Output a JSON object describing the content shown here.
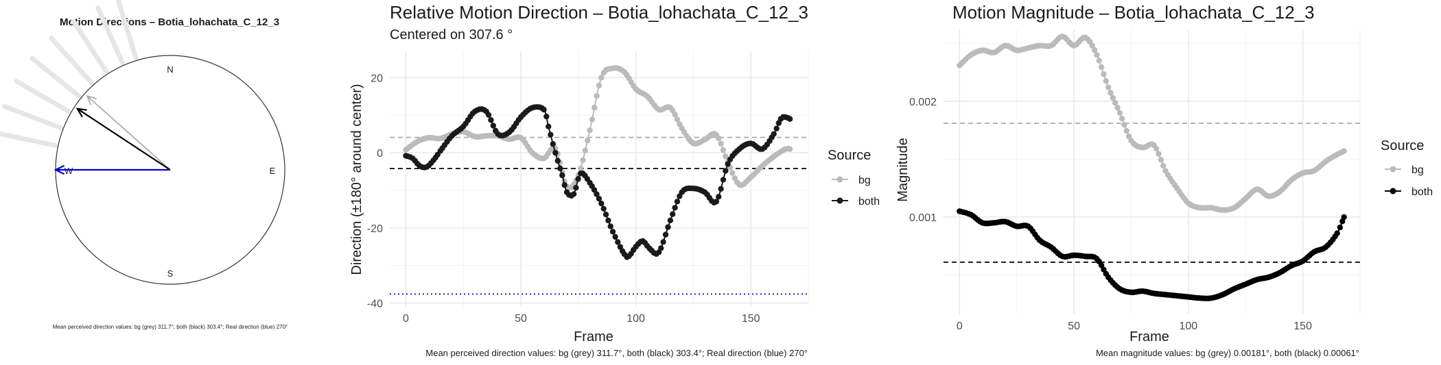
{
  "compass": {
    "title": "Motion Directions – Botia_lohachata_C_12_3",
    "labels": {
      "n": "N",
      "e": "E",
      "s": "S",
      "w": "W"
    },
    "caption": "Mean perceived direction values: bg (grey) 311.7°, both (black) 303.4°; Real direction (blue) 270°",
    "colors": {
      "bg": "#aaaaaa",
      "both": "#000000",
      "real": "#0000cc",
      "trail": "#e6e6e6"
    },
    "arrows": [
      {
        "source": "bg",
        "direction_deg": 311.7,
        "length": 0.97
      },
      {
        "source": "both",
        "direction_deg": 303.4,
        "length": 0.97
      },
      {
        "source": "real",
        "direction_deg": 270,
        "length": 1.0
      }
    ]
  },
  "chart_data": [
    {
      "type": "line",
      "title": "Relative Motion Direction – Botia_lohachata_C_12_3",
      "subtitle": "Centered on  307.6 °",
      "xlabel": "Frame",
      "ylabel": "Direction (±180° around center)",
      "xlim": [
        -7,
        175
      ],
      "ylim": [
        -41,
        27
      ],
      "xticks": [
        0,
        50,
        100,
        150
      ],
      "yticks": [
        -40,
        -20,
        0,
        20
      ],
      "grid": true,
      "legend": {
        "title": "Source",
        "position": "right"
      },
      "caption": "Mean perceived direction values: bg (grey) 311.7°, both (black) 303.4°; Real direction (blue) 270°",
      "hlines": [
        {
          "name": "bg mean",
          "y": 4.1,
          "style": "dashed",
          "color": "#aaaaaa"
        },
        {
          "name": "both mean",
          "y": -4.2,
          "style": "dashed",
          "color": "#000000"
        },
        {
          "name": "real direction",
          "y": -37.6,
          "style": "dotted",
          "color": "#0000cc"
        }
      ],
      "series": [
        {
          "name": "bg",
          "color": "#bbbbbb",
          "x": [
            0,
            5,
            10,
            15,
            20,
            25,
            30,
            35,
            40,
            45,
            50,
            55,
            60,
            65,
            70,
            75,
            80,
            85,
            90,
            95,
            100,
            105,
            110,
            115,
            120,
            125,
            130,
            135,
            140,
            145,
            150,
            155,
            160,
            165,
            167
          ],
          "y": [
            0.8,
            3,
            4,
            3.8,
            5,
            5.6,
            4.3,
            4.5,
            4.5,
            3.6,
            4,
            0,
            -1.5,
            1.2,
            -9,
            -6,
            6,
            20,
            22.5,
            21.5,
            17,
            15,
            11.5,
            12,
            6.5,
            2.5,
            3.5,
            4.8,
            -2.5,
            -8.5,
            -6.5,
            -3.5,
            -1,
            1,
            1
          ]
        },
        {
          "name": "both",
          "color": "#1a1a1a",
          "x": [
            0,
            3,
            6,
            9,
            12,
            15,
            20,
            25,
            30,
            35,
            40,
            45,
            50,
            55,
            60,
            62,
            65,
            68,
            70,
            73,
            76,
            80,
            85,
            90,
            95,
            97,
            100,
            103,
            106,
            110,
            115,
            120,
            125,
            130,
            135,
            140,
            145,
            150,
            155,
            160,
            163,
            165,
            167
          ],
          "y": [
            -0.8,
            -1.5,
            -3.5,
            -3.8,
            -2,
            0.5,
            4.5,
            7,
            11,
            11,
            5,
            5.5,
            9.5,
            12,
            11.5,
            7,
            0,
            -6,
            -10.5,
            -11,
            -5.5,
            -8,
            -13.5,
            -21,
            -27,
            -27.5,
            -25,
            -23.5,
            -25.5,
            -26.5,
            -18,
            -10.5,
            -9.5,
            -10.5,
            -13,
            -3,
            1,
            2.5,
            1,
            5,
            9,
            9.5,
            9
          ]
        }
      ]
    },
    {
      "type": "line",
      "title": "Motion Magnitude – Botia_lohachata_C_12_3",
      "xlabel": "Frame",
      "ylabel": "Magnitude",
      "xlim": [
        -7,
        175
      ],
      "ylim": [
        0.00016,
        0.00262
      ],
      "xticks": [
        0,
        50,
        100,
        150
      ],
      "yticks": [
        0.001,
        0.002
      ],
      "ytick_labels": [
        "0.001",
        "0.002"
      ],
      "grid": true,
      "legend": {
        "title": "Source",
        "position": "right"
      },
      "caption": "Mean magnitude values: bg (grey) 0.00181°, both (black) 0.00061°",
      "hlines": [
        {
          "name": "bg mean",
          "y": 0.00181,
          "style": "dashed",
          "color": "#aaaaaa"
        },
        {
          "name": "both mean",
          "y": 0.00061,
          "style": "dashed",
          "color": "#000000"
        }
      ],
      "series": [
        {
          "name": "bg",
          "color": "#bbbbbb",
          "x": [
            0,
            5,
            10,
            15,
            20,
            25,
            30,
            35,
            40,
            45,
            50,
            55,
            60,
            65,
            70,
            75,
            80,
            85,
            90,
            95,
            100,
            105,
            110,
            115,
            120,
            125,
            130,
            135,
            140,
            145,
            150,
            155,
            160,
            165,
            168
          ],
          "y": [
            0.00231,
            0.0024,
            0.00244,
            0.00242,
            0.00248,
            0.00244,
            0.00246,
            0.00248,
            0.00248,
            0.00256,
            0.00248,
            0.00255,
            0.0024,
            0.00212,
            0.0019,
            0.00166,
            0.0016,
            0.00162,
            0.0014,
            0.00125,
            0.00112,
            0.00108,
            0.00108,
            0.00106,
            0.00108,
            0.00116,
            0.00124,
            0.00118,
            0.00122,
            0.00132,
            0.00138,
            0.0014,
            0.00148,
            0.00154,
            0.00157
          ]
        },
        {
          "name": "both",
          "color": "#000000",
          "x": [
            0,
            5,
            10,
            15,
            20,
            25,
            30,
            35,
            40,
            45,
            50,
            55,
            60,
            65,
            70,
            75,
            80,
            85,
            90,
            95,
            100,
            105,
            110,
            115,
            120,
            125,
            130,
            135,
            140,
            145,
            150,
            155,
            160,
            165,
            168
          ],
          "y": [
            0.00105,
            0.00102,
            0.00095,
            0.00095,
            0.00096,
            0.00092,
            0.00092,
            0.0008,
            0.00074,
            0.00066,
            0.00067,
            0.00066,
            0.00064,
            0.00048,
            0.00038,
            0.00035,
            0.00036,
            0.00034,
            0.00033,
            0.00032,
            0.00031,
            0.0003,
            0.0003,
            0.00033,
            0.00038,
            0.00042,
            0.00046,
            0.00048,
            0.00052,
            0.00058,
            0.00062,
            0.0007,
            0.00074,
            0.00086,
            0.001
          ]
        }
      ]
    }
  ]
}
